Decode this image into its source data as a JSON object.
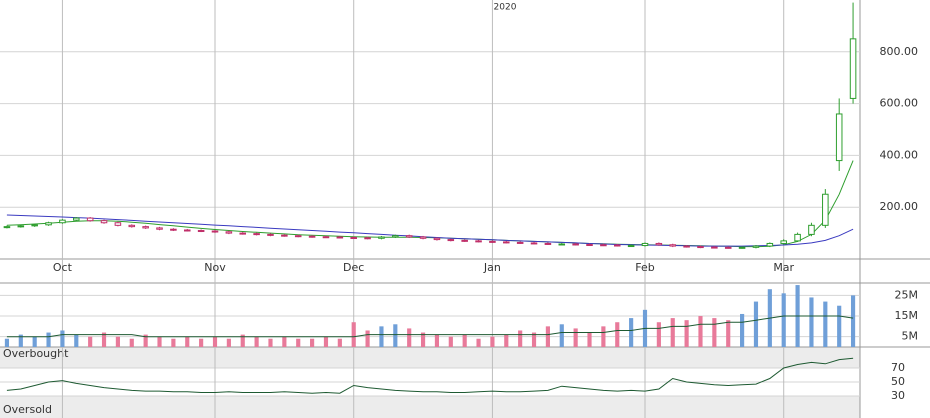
{
  "chart_data": {
    "type": "candlestick",
    "year_label": "2020",
    "categories": [
      null,
      null,
      null,
      null,
      "Oct",
      null,
      null,
      null,
      null,
      null,
      null,
      null,
      null,
      null,
      null,
      "Nov",
      null,
      null,
      null,
      null,
      null,
      null,
      null,
      null,
      null,
      "Dec",
      null,
      null,
      null,
      null,
      null,
      null,
      null,
      null,
      null,
      "Jan",
      null,
      null,
      null,
      null,
      null,
      null,
      null,
      null,
      null,
      null,
      "Feb",
      null,
      null,
      null,
      null,
      null,
      null,
      null,
      null,
      null,
      "Mar",
      null,
      null,
      null,
      null,
      null
    ],
    "open": [
      122,
      125,
      128,
      132,
      140,
      150,
      158,
      148,
      140,
      130,
      125,
      120,
      115,
      112,
      110,
      108,
      105,
      100,
      98,
      95,
      92,
      90,
      88,
      86,
      85,
      83,
      82,
      80,
      85,
      90,
      85,
      80,
      75,
      72,
      70,
      68,
      66,
      64,
      62,
      60,
      58,
      58,
      56,
      55,
      54,
      52,
      52,
      60,
      55,
      50,
      48,
      46,
      45,
      44,
      45,
      50,
      60,
      70,
      95,
      130,
      380,
      620
    ],
    "high": [
      129,
      132,
      136,
      144,
      154,
      162,
      162,
      152,
      144,
      134,
      129,
      124,
      119,
      116,
      114,
      112,
      109,
      104,
      102,
      99,
      96,
      94,
      92,
      90,
      89,
      87,
      86,
      89,
      94,
      94,
      89,
      84,
      79,
      76,
      74,
      72,
      70,
      68,
      66,
      64,
      62,
      62,
      60,
      59,
      58,
      56,
      64,
      64,
      59,
      54,
      52,
      50,
      49,
      49,
      54,
      64,
      76,
      102,
      140,
      270,
      620,
      990
    ],
    "low": [
      118,
      121,
      124,
      128,
      136,
      146,
      144,
      136,
      126,
      121,
      116,
      111,
      108,
      106,
      104,
      101,
      96,
      94,
      91,
      88,
      86,
      84,
      82,
      81,
      79,
      78,
      76,
      76,
      81,
      81,
      76,
      71,
      68,
      66,
      64,
      62,
      60,
      58,
      56,
      54,
      54,
      52,
      51,
      50,
      48,
      48,
      48,
      51,
      46,
      44,
      42,
      41,
      40,
      40,
      41,
      46,
      56,
      66,
      88,
      120,
      340,
      600
    ],
    "close": [
      125,
      128,
      132,
      140,
      150,
      158,
      148,
      140,
      130,
      125,
      120,
      115,
      112,
      110,
      108,
      105,
      100,
      98,
      95,
      92,
      90,
      88,
      86,
      85,
      83,
      82,
      80,
      85,
      90,
      85,
      80,
      75,
      72,
      70,
      68,
      66,
      64,
      62,
      60,
      58,
      58,
      56,
      55,
      54,
      52,
      52,
      60,
      55,
      50,
      48,
      46,
      45,
      44,
      45,
      50,
      60,
      70,
      95,
      130,
      250,
      560,
      850
    ],
    "up_color": "#2e9e2e",
    "down_color": "#c0306a",
    "ylim": [
      0,
      1000
    ],
    "yticks": [
      {
        "value": 200,
        "label": "200.00"
      },
      {
        "value": 400,
        "label": "400.00"
      },
      {
        "value": 600,
        "label": "600.00"
      },
      {
        "value": 800,
        "label": "800.00"
      }
    ],
    "grid": true,
    "series": [
      {
        "color": "#2e9e2e",
        "values": [
          130,
          132,
          135,
          138,
          142,
          146,
          148,
          148,
          146,
          142,
          138,
          133,
          128,
          123,
          118,
          114,
          110,
          106,
          103,
          100,
          97,
          94,
          92,
          90,
          88,
          86,
          85,
          84,
          84,
          84,
          83,
          82,
          80,
          78,
          76,
          74,
          72,
          70,
          68,
          66,
          64,
          62,
          60,
          59,
          57,
          56,
          55,
          54,
          53,
          52,
          51,
          50,
          49,
          48,
          48,
          49,
          55,
          68,
          95,
          150,
          250,
          380
        ]
      },
      {
        "color": "#3a3ac0",
        "values": [
          170,
          168,
          166,
          164,
          162,
          160,
          158,
          155,
          152,
          149,
          146,
          143,
          140,
          137,
          134,
          131,
          128,
          125,
          122,
          119,
          116,
          113,
          110,
          107,
          104,
          101,
          98,
          95,
          92,
          89,
          86,
          83,
          80,
          78,
          76,
          74,
          72,
          70,
          68,
          66,
          64,
          62,
          60,
          58,
          56,
          55,
          54,
          53,
          52,
          51,
          50,
          50,
          50,
          50,
          51,
          52,
          54,
          57,
          62,
          72,
          90,
          115
        ]
      }
    ],
    "volume": {
      "values": [
        4,
        6,
        5,
        7,
        8,
        6,
        5,
        7,
        5,
        4,
        6,
        5,
        4,
        5,
        4,
        5,
        4,
        6,
        5,
        4,
        5,
        4,
        4,
        5,
        4,
        12,
        8,
        10,
        11,
        9,
        7,
        6,
        5,
        6,
        4,
        5,
        6,
        8,
        7,
        10,
        11,
        9,
        7,
        10,
        12,
        14,
        18,
        12,
        14,
        13,
        15,
        14,
        13,
        16,
        22,
        28,
        26,
        30,
        24,
        22,
        20,
        25
      ],
      "ma": [
        5,
        5,
        5,
        5,
        6,
        6,
        6,
        6,
        6,
        6,
        5,
        5,
        5,
        5,
        5,
        5,
        5,
        5,
        5,
        5,
        5,
        5,
        5,
        5,
        5,
        5,
        6,
        6,
        6,
        6,
        6,
        6,
        6,
        6,
        6,
        6,
        6,
        6,
        6,
        6,
        7,
        7,
        7,
        7,
        8,
        8,
        9,
        9,
        10,
        10,
        11,
        11,
        12,
        12,
        13,
        14,
        15,
        15,
        15,
        15,
        15,
        14
      ],
      "up_color": "#6f9fd8",
      "down_color": "#e87a9a",
      "ma_color": "#1e5a32",
      "ylim": [
        0,
        31
      ],
      "yticks": [
        {
          "value": 5,
          "label": "5M"
        },
        {
          "value": 15,
          "label": "15M"
        },
        {
          "value": 25,
          "label": "25M"
        }
      ]
    },
    "rsi": {
      "values": [
        38,
        40,
        45,
        50,
        52,
        48,
        45,
        42,
        40,
        38,
        37,
        37,
        36,
        36,
        35,
        35,
        36,
        35,
        35,
        35,
        36,
        35,
        34,
        35,
        34,
        45,
        42,
        40,
        38,
        37,
        36,
        36,
        35,
        35,
        36,
        37,
        36,
        36,
        37,
        38,
        44,
        42,
        40,
        38,
        37,
        38,
        37,
        40,
        55,
        50,
        48,
        46,
        45,
        46,
        47,
        55,
        70,
        75,
        78,
        76,
        82,
        84
      ],
      "color": "#1e5a32",
      "ylim": [
        0,
        100
      ],
      "yticks": [
        30,
        50,
        70
      ],
      "overbought": 70,
      "oversold": 30,
      "overbought_label": "Overbought",
      "oversold_label": "Oversold"
    }
  }
}
